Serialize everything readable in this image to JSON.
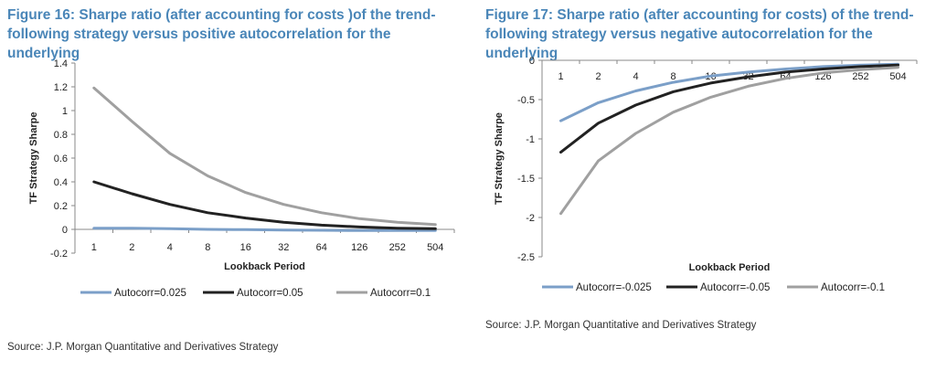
{
  "left_panel": {
    "title": "Figure 16: Sharpe ratio (after accounting for costs )of the trend-\nfollowing strategy versus positive autocorrelation for the underlying",
    "source": "Source: J.P. Morgan Quantitative and Derivatives Strategy"
  },
  "right_panel": {
    "title": "Figure 17: Sharpe ratio (after accounting for costs) of the trend-\nfollowing strategy versus negative autocorrelation for the underlying",
    "source": "Source: J.P. Morgan Quantitative and Derivatives Strategy"
  },
  "chart_data": [
    {
      "type": "line",
      "title": "",
      "xlabel": "Lookback Period",
      "ylabel": "TF Strategy Sharpe",
      "categories": [
        "1",
        "2",
        "4",
        "8",
        "16",
        "32",
        "64",
        "126",
        "252",
        "504"
      ],
      "ylim": [
        -0.2,
        1.4
      ],
      "yticks": [
        "-0.2",
        "0",
        "0.2",
        "0.4",
        "0.6",
        "0.8",
        "1",
        "1.2",
        "1.4"
      ],
      "grid": false,
      "legend": "bottom",
      "series": [
        {
          "name": "Autocorr=0.025",
          "color": "#7b9fc8",
          "values": [
            0.01,
            0.01,
            0.005,
            0.0,
            -0.002,
            -0.005,
            -0.008,
            -0.01,
            -0.01,
            -0.01
          ]
        },
        {
          "name": "Autocorr=0.05",
          "color": "#222222",
          "values": [
            0.4,
            0.3,
            0.21,
            0.14,
            0.095,
            0.06,
            0.035,
            0.02,
            0.01,
            0.005
          ]
        },
        {
          "name": "Autocorr=0.1",
          "color": "#a0a0a0",
          "values": [
            1.19,
            0.91,
            0.64,
            0.45,
            0.31,
            0.21,
            0.14,
            0.09,
            0.06,
            0.04
          ]
        }
      ]
    },
    {
      "type": "line",
      "title": "",
      "xlabel": "Lookback Period",
      "ylabel": "TF Strategy Sharpe",
      "categories": [
        "1",
        "2",
        "4",
        "8",
        "16",
        "32",
        "64",
        "126",
        "252",
        "504"
      ],
      "ylim": [
        -2.5,
        0
      ],
      "yticks": [
        "-2.5",
        "-2",
        "-1.5",
        "-1",
        "-0.5",
        "0"
      ],
      "grid": false,
      "legend": "bottom",
      "series": [
        {
          "name": "Autocorr=-0.025",
          "color": "#7b9fc8",
          "values": [
            -0.77,
            -0.54,
            -0.39,
            -0.28,
            -0.2,
            -0.15,
            -0.11,
            -0.08,
            -0.06,
            -0.05
          ]
        },
        {
          "name": "Autocorr=-0.05",
          "color": "#222222",
          "values": [
            -1.17,
            -0.8,
            -0.57,
            -0.4,
            -0.29,
            -0.21,
            -0.15,
            -0.11,
            -0.08,
            -0.06
          ]
        },
        {
          "name": "Autocorr=-0.1",
          "color": "#a0a0a0",
          "values": [
            -1.95,
            -1.28,
            -0.93,
            -0.66,
            -0.47,
            -0.33,
            -0.23,
            -0.16,
            -0.12,
            -0.09
          ]
        }
      ]
    }
  ]
}
